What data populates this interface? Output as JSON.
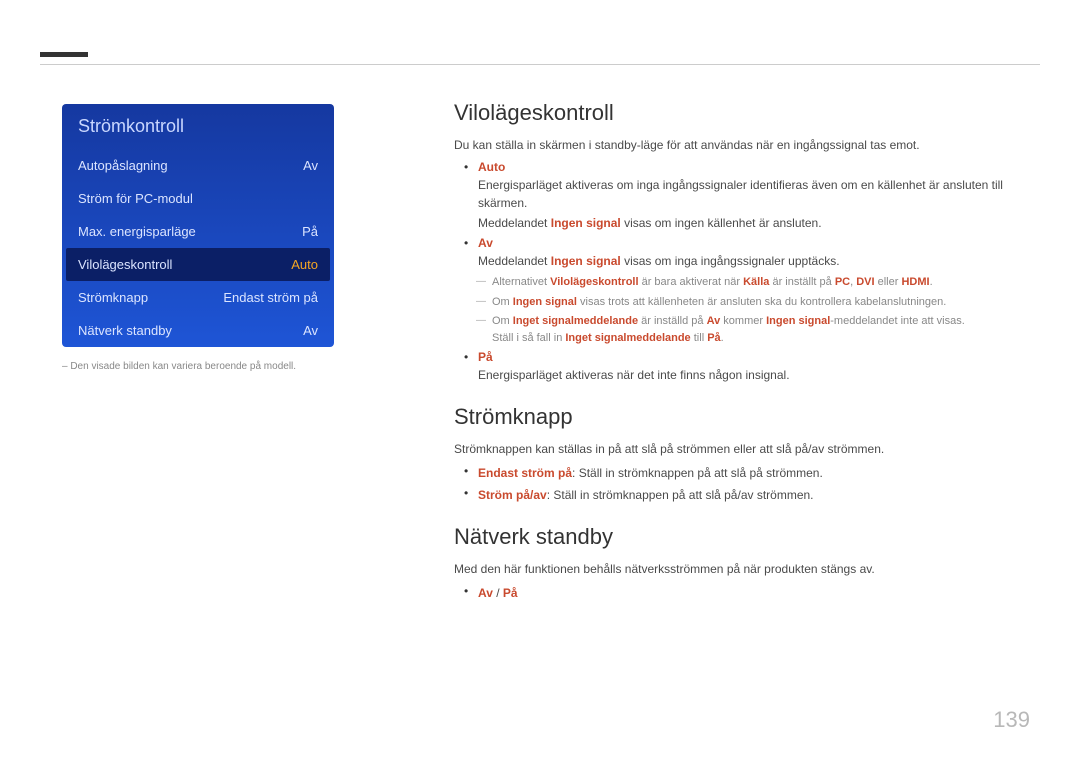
{
  "colors": {
    "menu_bg_start": "#1538a0",
    "menu_bg_end": "#1e55d6",
    "menu_text": "#dbe4ff",
    "menu_title_text": "#c9d7ff",
    "selected_bg": "#0b1f66",
    "selected_value": "#f5a623",
    "highlight": "#c94a2e",
    "muted": "#888888",
    "body_text": "#4a4a4a"
  },
  "menu": {
    "title": "Strömkontroll",
    "rows": [
      {
        "label": "Autopåslagning",
        "value": "Av",
        "selected": false
      },
      {
        "label": "Ström för PC-modul",
        "value": "",
        "selected": false
      },
      {
        "label": "Max. energisparläge",
        "value": "På",
        "selected": false
      },
      {
        "label": "Vilolägeskontroll",
        "value": "Auto",
        "selected": true
      },
      {
        "label": "Strömknapp",
        "value": "Endast ström på",
        "selected": false
      },
      {
        "label": "Nätverk standby",
        "value": "Av",
        "selected": false
      }
    ],
    "caption": "– Den visade bilden kan variera beroende på modell."
  },
  "sections": {
    "s1": {
      "title": "Vilolägeskontroll",
      "intro": "Du kan ställa in skärmen i standby-läge för att användas när en ingångssignal tas emot.",
      "items": {
        "auto": {
          "term": "Auto",
          "line1a": "Energisparläget aktiveras om inga ingångssignaler identifieras även om en källenhet är ansluten till skärmen.",
          "line2_pre": "Meddelandet ",
          "line2_hl": "Ingen signal",
          "line2_post": " visas om ingen källenhet är ansluten."
        },
        "av": {
          "term": "Av",
          "line_pre": "Meddelandet ",
          "line_hl": "Ingen signal",
          "line_post": " visas om inga ingångssignaler upptäcks.",
          "sub1": {
            "pre": "Alternativet ",
            "hl1": "Vilolägeskontroll",
            "mid1": " är bara aktiverat när ",
            "hl2": "Källa",
            "mid2": " är inställt på ",
            "hl3": "PC",
            "comma1": ", ",
            "hl4": "DVI",
            "mid3": " eller ",
            "hl5": "HDMI",
            "post": "."
          },
          "sub2": {
            "pre": "Om ",
            "hl1": "Ingen signal",
            "post": " visas trots att källenheten är ansluten ska du kontrollera kabelanslutningen."
          },
          "sub3": {
            "pre": "Om ",
            "hl1": "Inget signalmeddelande",
            "mid1": " är inställd på ",
            "hl2": "Av",
            "mid2": " kommer ",
            "hl3": "Ingen signal",
            "post": "-meddelandet inte att visas.",
            "line2_pre": "Ställ i så fall in ",
            "line2_hl1": "Inget signalmeddelande",
            "line2_mid": " till ",
            "line2_hl2": "På",
            "line2_post": "."
          }
        },
        "pa": {
          "term": "På",
          "line": "Energisparläget aktiveras när det inte finns någon insignal."
        }
      }
    },
    "s2": {
      "title": "Strömknapp",
      "intro": "Strömknappen kan ställas in på att slå på strömmen eller att slå på/av strömmen.",
      "b1_hl": "Endast ström på",
      "b1_post": ": Ställ in strömknappen på att slå på strömmen.",
      "b2_hl": "Ström på/av",
      "b2_post": ": Ställ in strömknappen på att slå på/av strömmen."
    },
    "s3": {
      "title": "Nätverk standby",
      "intro": "Med den här funktionen behålls nätverksströmmen på när produkten stängs av.",
      "opt1": "Av",
      "sep": " / ",
      "opt2": "På"
    }
  },
  "page_number": "139"
}
